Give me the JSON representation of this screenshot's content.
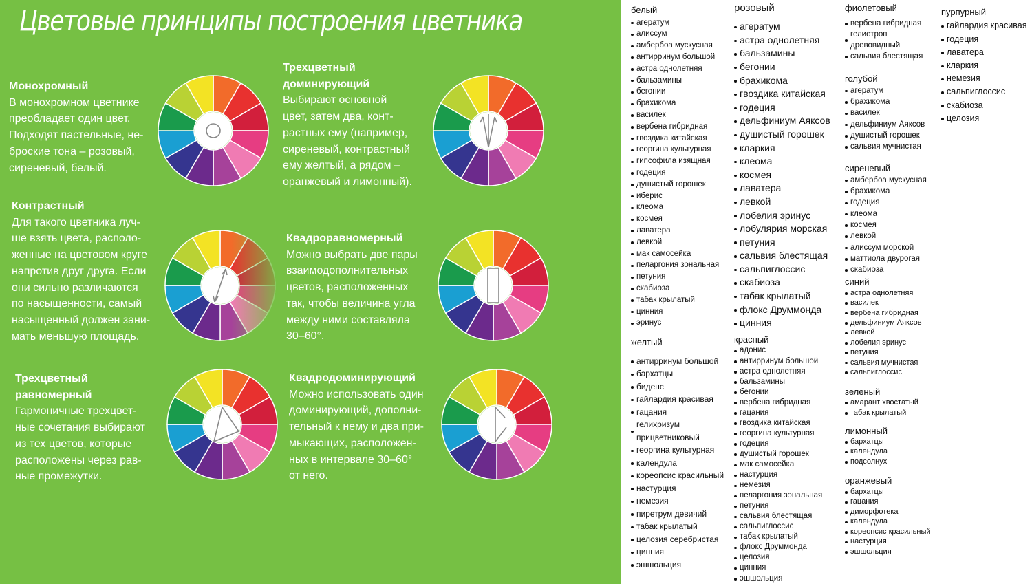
{
  "title": "Цветовые принципы построения цветника",
  "principles": [
    {
      "heading": [
        "Монохромный"
      ],
      "text": [
        "В монохромном цветнике",
        "преобладает один цвет.",
        "Подходят пастельные, не-",
        "броские тона – розовый,",
        "сиреневый, белый."
      ]
    },
    {
      "heading": [
        "Трехцветный",
        "доминирующий"
      ],
      "text": [
        "Выбирают основной",
        "цвет, затем два, конт-",
        "растных ему (например,",
        "сиреневый, контрастный",
        "ему желтый, а рядом –",
        "оранжевый и лимонный)."
      ]
    },
    {
      "heading": [
        "Контрастный"
      ],
      "text": [
        "Для такого цветника луч-",
        "ше взять цвета, располо-",
        "женные на цветовом круге",
        "напротив друг друга. Если",
        "они сильно различаются",
        "по насыщенности, самый",
        "насыщенный должен зани-",
        "мать меньшую площадь."
      ]
    },
    {
      "heading": [
        "Квадроравномерный"
      ],
      "text": [
        "Можно выбрать две пары",
        "взаимодополнительных",
        "цветов, расположенных",
        "так, чтобы величина угла",
        "между ними составляла",
        "30–60°."
      ]
    },
    {
      "heading": [
        "Трехцветный",
        "равномерный"
      ],
      "text": [
        "Гармоничные трехцвет-",
        "ные сочетания выбирают",
        "из тех цветов, которые",
        "расположены через рав-",
        "ные промежутки."
      ]
    },
    {
      "heading": [
        "Квадродоминирующий"
      ],
      "text": [
        "Можно использовать один",
        "доминирующий, дополни-",
        "тельный к нему и два при-",
        "мыкающих, расположен-",
        "ных в интервале 30–60°",
        "от него."
      ]
    }
  ],
  "plant_lists": [
    {
      "color": "белый",
      "plants": [
        "агератум",
        "алиссум",
        "амбербоа мускусная",
        "антирринум большой",
        "астра однолетняя",
        "бальзамины",
        "бегонии",
        "брахикома",
        "василек",
        "вербена гибридная",
        "гвоздика китайская",
        "георгина культурная",
        "гипсофила изящная",
        "годеция",
        "душистый горошек",
        "иберис",
        "клеома",
        "космея",
        "лаватера",
        "левкой",
        "мак самосейка",
        "пеларгония зональная",
        "петуния",
        "скабиоза",
        "табак крылатый",
        "цинния",
        "эринус"
      ]
    },
    {
      "color": "желтый",
      "plants": [
        "антирринум большой",
        "бархатцы",
        "биденс",
        "гайлардия красивая",
        "гацания",
        "гелихризум прицветниковый",
        "георгина культурная",
        "календула",
        "кореопсис красильный",
        "настурция",
        "немезия",
        "пиретрум девичий",
        "табак крылатый",
        "целозия серебристая",
        "цинния",
        "эшшольция"
      ]
    },
    {
      "color": "розовый",
      "plants": [
        "агератум",
        "астра однолетняя",
        "бальзамины",
        "бегонии",
        "брахикома",
        "гвоздика китайская",
        "годеция",
        "дельфиниум Аяксов",
        "душистый горошек",
        "кларкия",
        "клеома",
        "космея",
        "лаватера",
        "левкой",
        "лобелия эринус",
        "лобулярия морская",
        "петуния",
        "сальвия блестящая",
        "сальпиглоссис",
        "скабиоза",
        "табак крылатый",
        "флокс Друммонда",
        "цинния"
      ]
    },
    {
      "color": "красный",
      "plants": [
        "адонис",
        "антирринум большой",
        "астра однолетняя",
        "бальзамины",
        "бегонии",
        "вербена гибридная",
        "гацания",
        "гвоздика китайская",
        "георгина культурная",
        "годеция",
        "душистый горошек",
        "мак самосейка",
        "настурция",
        "немезия",
        "пеларгония зональная",
        "петуния",
        "сальвия блестящая",
        "сальпиглоссис",
        "табак крылатый",
        "флокс Друммонда",
        "целозия",
        "цинния",
        "эшшольция"
      ]
    },
    {
      "color": "фиолетовый",
      "plants": [
        "вербена гибридная",
        "гелиотроп древовидный",
        "сальвия блестящая"
      ]
    },
    {
      "color": "голубой",
      "plants": [
        "агератум",
        "брахикома",
        "василек",
        "дельфиниум Аяксов",
        "душистый горошек",
        "сальвия мучнистая"
      ]
    },
    {
      "color": "сиреневый",
      "plants": [
        "амбербоа мускусная",
        "брахикома",
        "годеция",
        "клеома",
        "космея",
        "левкой",
        "алиссум морской",
        "маттиола двурогая",
        "скабиоза"
      ]
    },
    {
      "color": "синий",
      "plants": [
        "астра однолетняя",
        "василек",
        "вербена гибридная",
        "дельфиниум Аяксов",
        "левкой",
        "лобелия эринус",
        "петуния",
        "сальвия мучнистая",
        "сальпиглоссис"
      ]
    },
    {
      "color": "зеленый",
      "plants": [
        "амарант хвостатый",
        "табак крылатый"
      ]
    },
    {
      "color": "лимонный",
      "plants": [
        "бархатцы",
        "календула",
        "подсолнух"
      ]
    },
    {
      "color": "оранжевый",
      "plants": [
        "бархатцы",
        "гацания",
        "диморфотека",
        "календула",
        "кореопсис красильный",
        "настурция",
        "эшшольция"
      ]
    },
    {
      "color": "пурпурный",
      "plants": [
        "гайлардия красивая",
        "годеция",
        "лаватера",
        "кларкия",
        "немезия",
        "сальпиглоссис",
        "скабиоза",
        "целозия"
      ]
    }
  ]
}
